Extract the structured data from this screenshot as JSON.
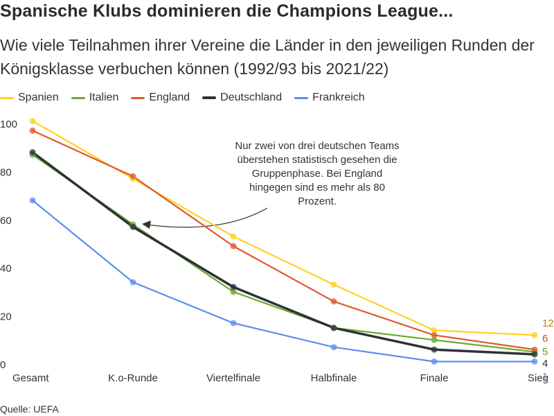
{
  "chart_data": {
    "type": "line",
    "title": "Spanische Klubs dominieren die Champions League...",
    "subtitle": "Wie viele Teilnahmen ihrer Vereine die Länder in den jeweiligen Runden der Königsklasse verbuchen können (1992/93 bis 2021/22)",
    "categories": [
      "Gesamt",
      "K.o-Runde",
      "Viertelfinale",
      "Halbfinale",
      "Finale",
      "Sieg"
    ],
    "y_ticks": [
      "100",
      "80",
      "60",
      "40",
      "20",
      "0"
    ],
    "ylim": [
      0,
      100
    ],
    "grid": false,
    "legend_position": "top-left",
    "series": [
      {
        "name": "Spanien",
        "color": "#ffd21f",
        "values": [
          101,
          77,
          53,
          33,
          14,
          12
        ],
        "end_label": "12"
      },
      {
        "name": "Italien",
        "color": "#6aaa2e",
        "values": [
          87,
          58,
          30,
          15,
          10,
          5
        ],
        "end_label": "5"
      },
      {
        "name": "England",
        "color": "#e0572e",
        "values": [
          97,
          78,
          49,
          26,
          12,
          6
        ],
        "end_label": "6"
      },
      {
        "name": "Deutschland",
        "color": "#2b3237",
        "values": [
          88,
          57,
          32,
          15,
          6,
          4
        ],
        "end_label": "4"
      },
      {
        "name": "Frankreich",
        "color": "#5b8def",
        "values": [
          68,
          34,
          17,
          7,
          1,
          1
        ],
        "end_label": "1"
      }
    ],
    "end_label_colors": {
      "Spanien": "#b8860b",
      "Italien": "#5a9a20",
      "England": "#d04a20",
      "Deutschland": "#2b3237",
      "Frankreich": "#5b8def"
    },
    "annotation": {
      "lines": [
        "Nur zwei von drei deutschen Teams",
        "überstehen statistisch gesehen die",
        "Gruppenphase. Bei England",
        "hingegen sind es mehr als 80",
        "Prozent."
      ]
    }
  },
  "source": "Quelle: UEFA"
}
